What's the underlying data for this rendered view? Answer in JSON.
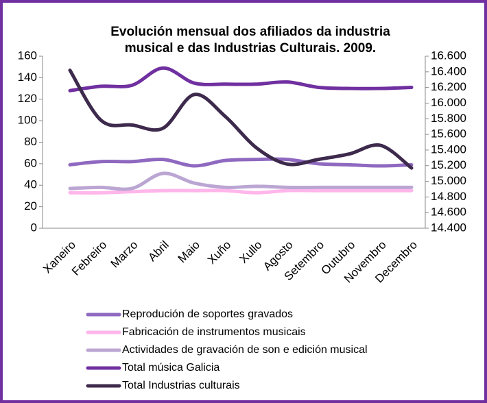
{
  "chart_data": {
    "type": "line",
    "title": [
      "Evolución mensual dos afiliados da industria",
      "musical e das Industrias Culturais. 2009."
    ],
    "categories": [
      "Xaneiro",
      "Febreiro",
      "Marzo",
      "Abril",
      "Maio",
      "Xuño",
      "Xullo",
      "Agosto",
      "Setembro",
      "Outubro",
      "Novembro",
      "Decembro"
    ],
    "series": [
      {
        "name": "Reprodución de soportes gravados",
        "color": "#8f69c0",
        "values": [
          59,
          62,
          62,
          64,
          58,
          63,
          64,
          64,
          60,
          59,
          58,
          59
        ]
      },
      {
        "name": "Fabricación de instrumentos musicais",
        "color": "#ffb6ea",
        "values": [
          33,
          33,
          34,
          35,
          35,
          35,
          33,
          35,
          35,
          35,
          35,
          35
        ]
      },
      {
        "name": "Actividades de gravación de son e edición musical",
        "color": "#bba6d3",
        "values": [
          37,
          38,
          37,
          51,
          42,
          38,
          39,
          38,
          38,
          38,
          38,
          38
        ]
      },
      {
        "name": "Total música Galicia",
        "color": "#7030a0",
        "values": [
          128,
          132,
          133,
          149,
          135,
          134,
          134,
          136,
          131,
          130,
          130,
          131
        ]
      },
      {
        "name": "Total Industrias culturais",
        "color": "#3d2a4c",
        "axis": "y2",
        "values": [
          16420,
          15780,
          15720,
          15680,
          16110,
          15830,
          15430,
          15220,
          15280,
          15350,
          15460,
          15170
        ]
      }
    ],
    "ylim": [
      0,
      160
    ],
    "yticks": [
      0,
      20,
      40,
      60,
      80,
      100,
      120,
      140,
      160
    ],
    "y2lim": [
      14400,
      16600
    ],
    "y2ticks": [
      {
        "value": 14400,
        "label": "14.400"
      },
      {
        "value": 14600,
        "label": "14.600"
      },
      {
        "value": 14800,
        "label": "14.800"
      },
      {
        "value": 15000,
        "label": "15.000"
      },
      {
        "value": 15200,
        "label": "15.200"
      },
      {
        "value": 15400,
        "label": "15.400"
      },
      {
        "value": 15600,
        "label": "15.600"
      },
      {
        "value": 15800,
        "label": "15.800"
      },
      {
        "value": 16000,
        "label": "16.000"
      },
      {
        "value": 16200,
        "label": "16.200"
      },
      {
        "value": 16400,
        "label": "16.400"
      },
      {
        "value": 16600,
        "label": "16.600"
      }
    ],
    "legend": "bottom"
  }
}
